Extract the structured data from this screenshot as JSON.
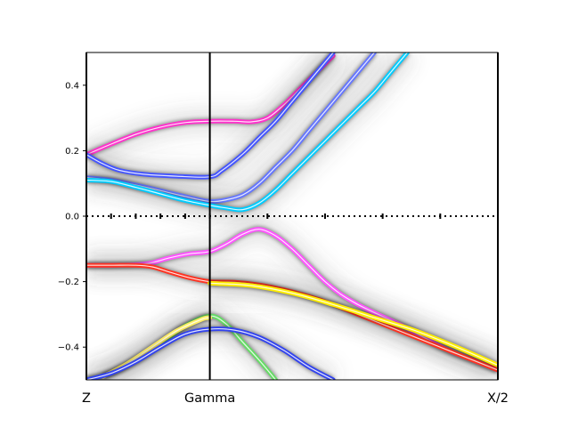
{
  "chart_data": {
    "type": "line",
    "title": "",
    "xlabel": "",
    "ylabel": "",
    "xlim": [
      0,
      1
    ],
    "ylim": [
      -0.5,
      0.5
    ],
    "k_points": [
      {
        "label": "Z",
        "x": 0.0
      },
      {
        "label": "Gamma",
        "x": 0.3
      },
      {
        "label": "X/2",
        "x": 1.0
      }
    ],
    "y_ticks": [
      {
        "value": -0.4,
        "label": "−0.4"
      },
      {
        "value": -0.2,
        "label": "−0.2"
      },
      {
        "value": 0.0,
        "label": "0.0"
      },
      {
        "value": 0.2,
        "label": "0.2"
      },
      {
        "value": 0.4,
        "label": "0.4"
      }
    ],
    "fermi_level": 0.0,
    "fermi_marker_x": [
      0.06,
      0.12,
      0.18,
      0.24,
      0.3,
      0.44,
      0.58,
      0.72,
      0.86
    ],
    "background": "broadened spectral function (white = low weight, grey = high weight)",
    "series": [
      {
        "color": "#ff33cc",
        "points": [
          [
            0,
            0.188
          ],
          [
            0.06,
            0.22
          ],
          [
            0.12,
            0.25
          ],
          [
            0.18,
            0.272
          ],
          [
            0.24,
            0.286
          ],
          [
            0.3,
            0.29
          ],
          [
            0.36,
            0.29
          ],
          [
            0.4,
            0.288
          ],
          [
            0.44,
            0.3
          ],
          [
            0.48,
            0.34
          ],
          [
            0.52,
            0.39
          ],
          [
            0.56,
            0.44
          ],
          [
            0.6,
            0.49
          ]
        ]
      },
      {
        "color": "#4455ff",
        "points": [
          [
            0,
            0.188
          ],
          [
            0.04,
            0.16
          ],
          [
            0.08,
            0.14
          ],
          [
            0.14,
            0.128
          ],
          [
            0.22,
            0.122
          ],
          [
            0.3,
            0.12
          ],
          [
            0.33,
            0.14
          ],
          [
            0.38,
            0.19
          ],
          [
            0.42,
            0.24
          ],
          [
            0.46,
            0.29
          ],
          [
            0.5,
            0.35
          ],
          [
            0.54,
            0.41
          ],
          [
            0.58,
            0.47
          ],
          [
            0.6,
            0.5
          ]
        ]
      },
      {
        "color": "#6677ff",
        "points": [
          [
            0,
            0.118
          ],
          [
            0.06,
            0.11
          ],
          [
            0.12,
            0.095
          ],
          [
            0.18,
            0.078
          ],
          [
            0.24,
            0.06
          ],
          [
            0.3,
            0.045
          ],
          [
            0.34,
            0.05
          ],
          [
            0.38,
            0.065
          ],
          [
            0.42,
            0.1
          ],
          [
            0.46,
            0.15
          ],
          [
            0.5,
            0.2
          ],
          [
            0.54,
            0.26
          ],
          [
            0.58,
            0.32
          ],
          [
            0.62,
            0.38
          ],
          [
            0.66,
            0.44
          ],
          [
            0.7,
            0.5
          ]
        ]
      },
      {
        "color": "#00ccff",
        "points": [
          [
            0,
            0.11
          ],
          [
            0.06,
            0.106
          ],
          [
            0.12,
            0.088
          ],
          [
            0.18,
            0.068
          ],
          [
            0.24,
            0.048
          ],
          [
            0.3,
            0.033
          ],
          [
            0.34,
            0.025
          ],
          [
            0.38,
            0.02
          ],
          [
            0.42,
            0.04
          ],
          [
            0.46,
            0.08
          ],
          [
            0.5,
            0.13
          ],
          [
            0.54,
            0.18
          ],
          [
            0.58,
            0.23
          ],
          [
            0.62,
            0.28
          ],
          [
            0.66,
            0.33
          ],
          [
            0.7,
            0.38
          ],
          [
            0.74,
            0.44
          ],
          [
            0.78,
            0.5
          ]
        ]
      },
      {
        "color": "#ff55ff",
        "points": [
          [
            0,
            -0.15
          ],
          [
            0.06,
            -0.15
          ],
          [
            0.12,
            -0.148
          ],
          [
            0.16,
            -0.142
          ],
          [
            0.2,
            -0.128
          ],
          [
            0.25,
            -0.115
          ],
          [
            0.3,
            -0.108
          ],
          [
            0.34,
            -0.085
          ],
          [
            0.38,
            -0.055
          ],
          [
            0.42,
            -0.04
          ],
          [
            0.46,
            -0.06
          ],
          [
            0.5,
            -0.1
          ],
          [
            0.54,
            -0.15
          ],
          [
            0.58,
            -0.2
          ],
          [
            0.62,
            -0.24
          ],
          [
            0.66,
            -0.27
          ],
          [
            0.7,
            -0.295
          ],
          [
            0.76,
            -0.33
          ],
          [
            0.82,
            -0.37
          ],
          [
            0.88,
            -0.41
          ],
          [
            0.94,
            -0.44
          ],
          [
            1.0,
            -0.47
          ]
        ]
      },
      {
        "color": "#ff3322",
        "points": [
          [
            0,
            -0.15
          ],
          [
            0.06,
            -0.15
          ],
          [
            0.12,
            -0.15
          ],
          [
            0.16,
            -0.155
          ],
          [
            0.2,
            -0.17
          ],
          [
            0.25,
            -0.188
          ],
          [
            0.3,
            -0.2
          ],
          [
            0.36,
            -0.202
          ],
          [
            0.42,
            -0.21
          ],
          [
            0.48,
            -0.225
          ],
          [
            0.54,
            -0.245
          ],
          [
            0.6,
            -0.27
          ],
          [
            0.66,
            -0.3
          ],
          [
            0.72,
            -0.33
          ],
          [
            0.78,
            -0.36
          ],
          [
            0.84,
            -0.39
          ],
          [
            0.9,
            -0.42
          ],
          [
            0.96,
            -0.45
          ],
          [
            1.0,
            -0.47
          ]
        ]
      },
      {
        "color": "#ffee00",
        "points": [
          [
            0.3,
            -0.205
          ],
          [
            0.4,
            -0.212
          ],
          [
            0.5,
            -0.235
          ],
          [
            0.6,
            -0.27
          ],
          [
            0.7,
            -0.31
          ],
          [
            0.8,
            -0.35
          ],
          [
            0.9,
            -0.4
          ],
          [
            1.0,
            -0.455
          ]
        ]
      },
      {
        "color": "#66dd66",
        "points": [
          [
            0,
            -0.5
          ],
          [
            0.06,
            -0.48
          ],
          [
            0.12,
            -0.44
          ],
          [
            0.18,
            -0.39
          ],
          [
            0.24,
            -0.335
          ],
          [
            0.3,
            -0.305
          ],
          [
            0.34,
            -0.33
          ],
          [
            0.38,
            -0.385
          ],
          [
            0.42,
            -0.44
          ],
          [
            0.46,
            -0.5
          ]
        ]
      },
      {
        "color": "#ffee66",
        "points": [
          [
            0.04,
            -0.49
          ],
          [
            0.1,
            -0.45
          ],
          [
            0.16,
            -0.4
          ],
          [
            0.22,
            -0.35
          ],
          [
            0.28,
            -0.315
          ],
          [
            0.3,
            -0.31
          ]
        ]
      },
      {
        "color": "#3344ee",
        "points": [
          [
            0,
            -0.5
          ],
          [
            0.06,
            -0.48
          ],
          [
            0.12,
            -0.445
          ],
          [
            0.18,
            -0.4
          ],
          [
            0.24,
            -0.36
          ],
          [
            0.3,
            -0.345
          ],
          [
            0.36,
            -0.348
          ],
          [
            0.42,
            -0.37
          ],
          [
            0.48,
            -0.41
          ],
          [
            0.54,
            -0.46
          ],
          [
            0.6,
            -0.5
          ]
        ]
      }
    ]
  }
}
